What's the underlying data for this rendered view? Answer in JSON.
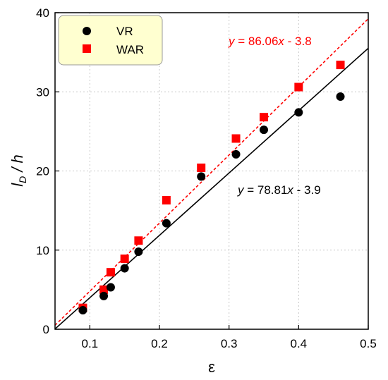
{
  "chart_data": {
    "type": "scatter",
    "xlabel": "ε",
    "ylabel_main": "l",
    "ylabel_sub": "D",
    "ylabel_rest": " / h",
    "xlim": [
      0.05,
      0.5
    ],
    "ylim": [
      0,
      40
    ],
    "x_ticks": [
      "0.1",
      "0.2",
      "0.3",
      "0.4",
      "0.5"
    ],
    "x_tick_values": [
      0.1,
      0.2,
      0.3,
      0.4,
      0.5
    ],
    "y_ticks": [
      "0",
      "10",
      "20",
      "30",
      "40"
    ],
    "y_tick_values": [
      0,
      10,
      20,
      30,
      40
    ],
    "grid": true,
    "legend_position": "top-left",
    "series": [
      {
        "name": "VR",
        "marker": "circle",
        "color": "#000000",
        "x": [
          0.09,
          0.12,
          0.13,
          0.15,
          0.17,
          0.21,
          0.26,
          0.31,
          0.35,
          0.4,
          0.46
        ],
        "y": [
          2.4,
          4.2,
          5.3,
          7.7,
          9.8,
          13.4,
          19.3,
          22.1,
          25.2,
          27.4,
          29.4
        ],
        "fit": {
          "slope": 78.81,
          "intercept": -3.9,
          "style": "solid",
          "label_y": "y",
          "label_eq": " = 78.81",
          "label_x": "x",
          "label_tail": " - 3.9"
        }
      },
      {
        "name": "WAR",
        "marker": "square",
        "color": "#ff0000",
        "x": [
          0.09,
          0.12,
          0.13,
          0.15,
          0.17,
          0.21,
          0.26,
          0.31,
          0.35,
          0.4,
          0.46
        ],
        "y": [
          2.7,
          5.0,
          7.2,
          8.9,
          11.2,
          16.3,
          20.4,
          24.1,
          26.8,
          30.6,
          33.4
        ],
        "fit": {
          "slope": 86.06,
          "intercept": -3.8,
          "style": "dashed",
          "label_y": "y",
          "label_eq": " = 86.06",
          "label_x": "x",
          "label_tail": " - 3.8"
        }
      }
    ]
  }
}
